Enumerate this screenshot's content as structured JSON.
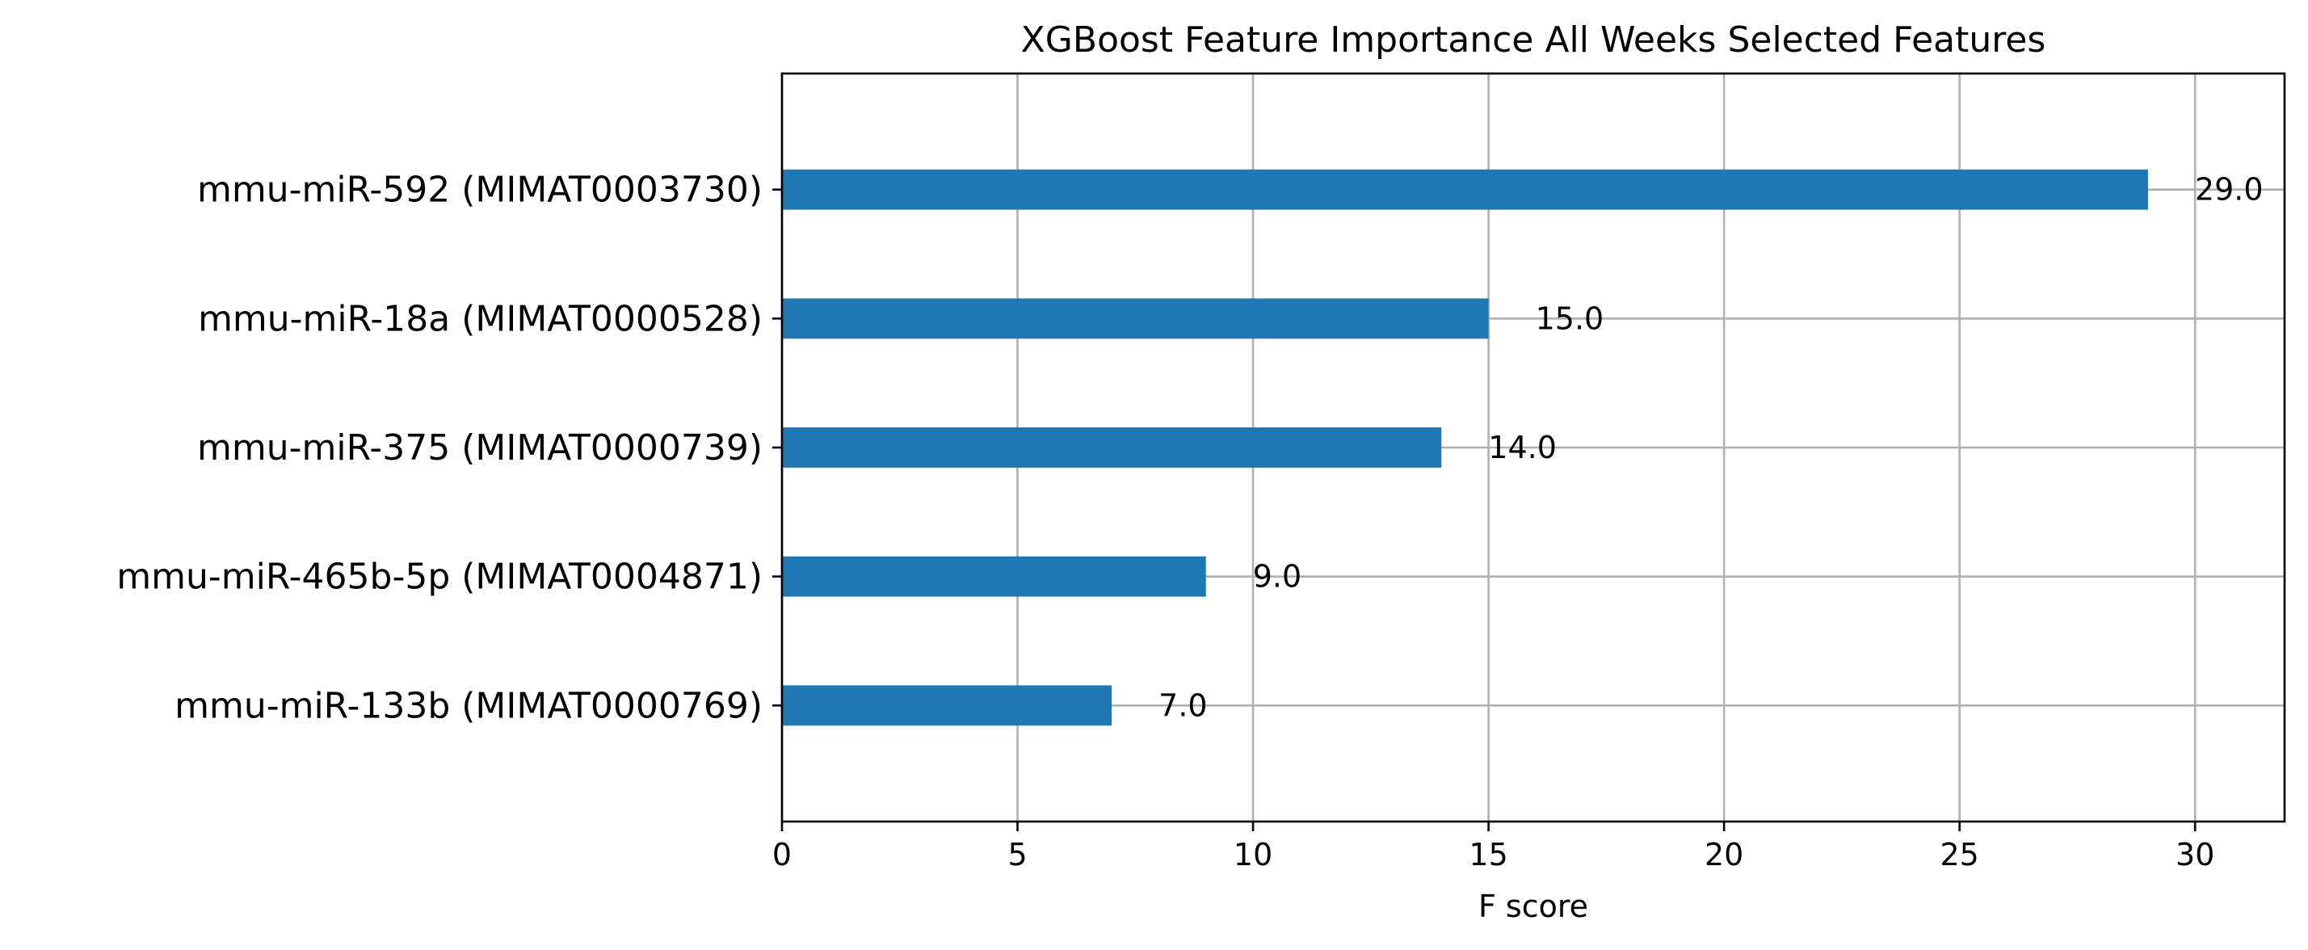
{
  "chart_data": {
    "type": "bar",
    "orientation": "horizontal",
    "title": "XGBoost Feature Importance All Weeks Selected Features",
    "xlabel": "F score",
    "ylabel": "",
    "categories": [
      "mmu-miR-592 (MIMAT0003730)",
      "mmu-miR-18a (MIMAT0000528)",
      "mmu-miR-375 (MIMAT0000739)",
      "mmu-miR-465b-5p (MIMAT0004871)",
      "mmu-miR-133b (MIMAT0000769)"
    ],
    "values": [
      29.0,
      15.0,
      14.0,
      9.0,
      7.0
    ],
    "value_labels": [
      "29.0",
      "15.0",
      "14.0",
      "9.0",
      "7.0"
    ],
    "xlim": [
      0,
      31.9
    ],
    "xticks": [
      0,
      5,
      10,
      15,
      20,
      25,
      30
    ],
    "xtick_labels": [
      "0",
      "5",
      "10",
      "15",
      "20",
      "25",
      "30"
    ],
    "grid": true,
    "bar_color": "#1f77b4",
    "grid_color": "#b0b0b0"
  }
}
